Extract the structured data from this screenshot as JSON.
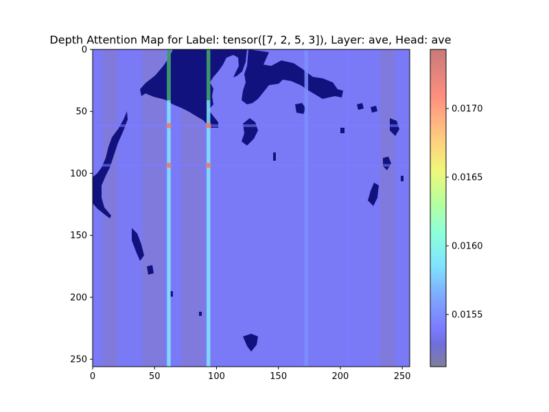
{
  "chart_data": {
    "type": "heatmap",
    "title": "Depth Attention Map for Label: tensor([7, 2, 5, 3]), Layer: ave, Head: ave",
    "xlabel": "",
    "ylabel": "",
    "xlim": [
      0,
      256
    ],
    "ylim": [
      256,
      0
    ],
    "x_ticks": [
      0,
      50,
      100,
      150,
      200,
      250
    ],
    "y_ticks": [
      0,
      50,
      100,
      150,
      200,
      250
    ],
    "grid": false,
    "colormap": "jet",
    "colorbar": {
      "min": 0.01512,
      "max": 0.01743,
      "ticks": [
        0.0155,
        0.016,
        0.0165,
        0.017
      ],
      "tick_labels": [
        "0.0155",
        "0.0160",
        "0.0165",
        "0.0170"
      ]
    },
    "base_value": 0.01533,
    "column_bands": [
      {
        "x": [
          60,
          63
        ],
        "value": 0.0159
      },
      {
        "x": [
          92,
          95
        ],
        "value": 0.0159
      },
      {
        "x": [
          171,
          174
        ],
        "value": 0.0155
      },
      {
        "x": [
          205,
          207
        ],
        "value": 0.0154
      }
    ],
    "dim_bands": [
      {
        "x": [
          8,
          20
        ]
      },
      {
        "x": [
          40,
          58
        ]
      },
      {
        "x": [
          72,
          90
        ]
      },
      {
        "x": [
          232,
          244
        ]
      }
    ],
    "peak_cells": [
      {
        "x": 61.5,
        "y": 61.5,
        "value": 0.0173
      },
      {
        "x": 93.5,
        "y": 61.5,
        "value": 0.0173
      },
      {
        "x": 61.5,
        "y": 93.5,
        "value": 0.0173
      },
      {
        "x": 93.5,
        "y": 93.5,
        "value": 0.0173
      }
    ],
    "row_bands": [
      {
        "y": 61.5,
        "value": 0.0154
      },
      {
        "y": 93.5,
        "value": 0.0154
      }
    ]
  }
}
